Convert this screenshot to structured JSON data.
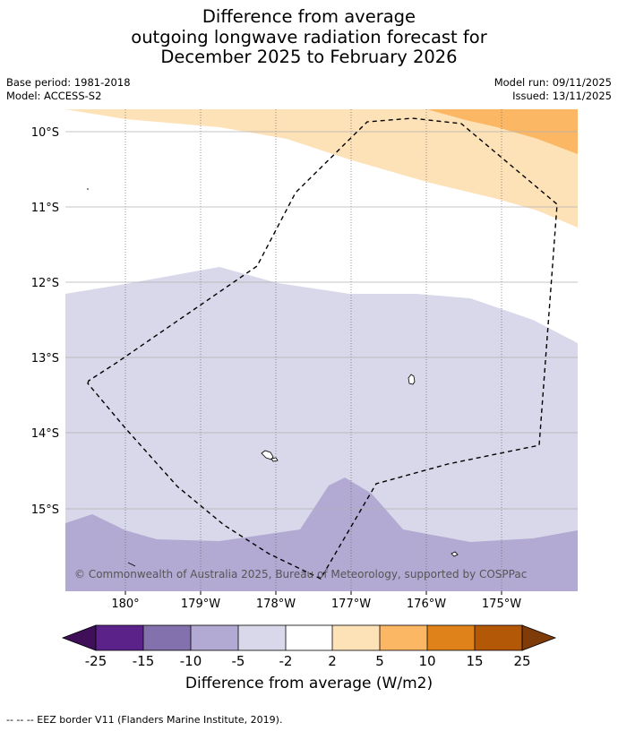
{
  "title": {
    "line1": "Difference from average",
    "line2": "outgoing longwave radiation forecast for",
    "line3": "December 2025 to February 2026"
  },
  "meta": {
    "base_period": "Base period: 1981-2018",
    "model": "Model: ACCESS-S2",
    "model_run": "Model run: 09/11/2025",
    "issued": "Issued: 13/11/2025"
  },
  "map": {
    "lon_ticks": [
      "180°",
      "179°W",
      "178°W",
      "177°W",
      "176°W",
      "175°W"
    ],
    "lat_ticks": [
      "10°S",
      "11°S",
      "12°S",
      "13°S",
      "14°S",
      "15°S"
    ],
    "lon_range": [
      179.2,
      -174.0
    ],
    "lat_range": [
      -16.1,
      -9.7
    ],
    "copyright": "© Commonwealth of Australia 2025, Bureau of Meteorology, supported by COSPPac"
  },
  "colorbar": {
    "ticks": [
      "-25",
      "-15",
      "-10",
      "-5",
      "-2",
      "2",
      "5",
      "10",
      "15",
      "25"
    ],
    "colors": [
      "#3f0f5a",
      "#5b2389",
      "#8371ad",
      "#b2aad3",
      "#d8d8ea",
      "#ffffff",
      "#fde1b7",
      "#fbb763",
      "#e0821a",
      "#b35806",
      "#7f3b08"
    ],
    "label": "Difference from average (W/m2)"
  },
  "footer": "--  --  -- EEZ border V11 (Flanders Marine Institute, 2019)."
}
